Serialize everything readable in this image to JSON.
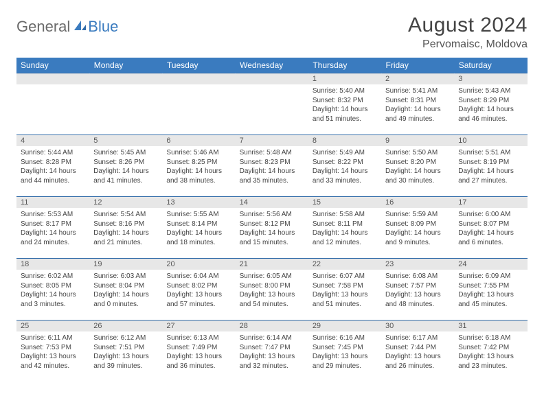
{
  "logo": {
    "word1": "General",
    "word2": "Blue"
  },
  "title": "August 2024",
  "location": "Pervomaisc, Moldova",
  "colors": {
    "header_bg": "#3a7bbf",
    "header_text": "#ffffff",
    "daynum_bg": "#e7e7e7",
    "row_border": "#2f6aa8",
    "body_text": "#444444",
    "logo_gray": "#6a6a6a",
    "logo_blue": "#3a7bbf"
  },
  "day_headers": [
    "Sunday",
    "Monday",
    "Tuesday",
    "Wednesday",
    "Thursday",
    "Friday",
    "Saturday"
  ],
  "weeks": [
    [
      {
        "n": "",
        "sr": "",
        "ss": "",
        "dl": ""
      },
      {
        "n": "",
        "sr": "",
        "ss": "",
        "dl": ""
      },
      {
        "n": "",
        "sr": "",
        "ss": "",
        "dl": ""
      },
      {
        "n": "",
        "sr": "",
        "ss": "",
        "dl": ""
      },
      {
        "n": "1",
        "sr": "Sunrise: 5:40 AM",
        "ss": "Sunset: 8:32 PM",
        "dl": "Daylight: 14 hours and 51 minutes."
      },
      {
        "n": "2",
        "sr": "Sunrise: 5:41 AM",
        "ss": "Sunset: 8:31 PM",
        "dl": "Daylight: 14 hours and 49 minutes."
      },
      {
        "n": "3",
        "sr": "Sunrise: 5:43 AM",
        "ss": "Sunset: 8:29 PM",
        "dl": "Daylight: 14 hours and 46 minutes."
      }
    ],
    [
      {
        "n": "4",
        "sr": "Sunrise: 5:44 AM",
        "ss": "Sunset: 8:28 PM",
        "dl": "Daylight: 14 hours and 44 minutes."
      },
      {
        "n": "5",
        "sr": "Sunrise: 5:45 AM",
        "ss": "Sunset: 8:26 PM",
        "dl": "Daylight: 14 hours and 41 minutes."
      },
      {
        "n": "6",
        "sr": "Sunrise: 5:46 AM",
        "ss": "Sunset: 8:25 PM",
        "dl": "Daylight: 14 hours and 38 minutes."
      },
      {
        "n": "7",
        "sr": "Sunrise: 5:48 AM",
        "ss": "Sunset: 8:23 PM",
        "dl": "Daylight: 14 hours and 35 minutes."
      },
      {
        "n": "8",
        "sr": "Sunrise: 5:49 AM",
        "ss": "Sunset: 8:22 PM",
        "dl": "Daylight: 14 hours and 33 minutes."
      },
      {
        "n": "9",
        "sr": "Sunrise: 5:50 AM",
        "ss": "Sunset: 8:20 PM",
        "dl": "Daylight: 14 hours and 30 minutes."
      },
      {
        "n": "10",
        "sr": "Sunrise: 5:51 AM",
        "ss": "Sunset: 8:19 PM",
        "dl": "Daylight: 14 hours and 27 minutes."
      }
    ],
    [
      {
        "n": "11",
        "sr": "Sunrise: 5:53 AM",
        "ss": "Sunset: 8:17 PM",
        "dl": "Daylight: 14 hours and 24 minutes."
      },
      {
        "n": "12",
        "sr": "Sunrise: 5:54 AM",
        "ss": "Sunset: 8:16 PM",
        "dl": "Daylight: 14 hours and 21 minutes."
      },
      {
        "n": "13",
        "sr": "Sunrise: 5:55 AM",
        "ss": "Sunset: 8:14 PM",
        "dl": "Daylight: 14 hours and 18 minutes."
      },
      {
        "n": "14",
        "sr": "Sunrise: 5:56 AM",
        "ss": "Sunset: 8:12 PM",
        "dl": "Daylight: 14 hours and 15 minutes."
      },
      {
        "n": "15",
        "sr": "Sunrise: 5:58 AM",
        "ss": "Sunset: 8:11 PM",
        "dl": "Daylight: 14 hours and 12 minutes."
      },
      {
        "n": "16",
        "sr": "Sunrise: 5:59 AM",
        "ss": "Sunset: 8:09 PM",
        "dl": "Daylight: 14 hours and 9 minutes."
      },
      {
        "n": "17",
        "sr": "Sunrise: 6:00 AM",
        "ss": "Sunset: 8:07 PM",
        "dl": "Daylight: 14 hours and 6 minutes."
      }
    ],
    [
      {
        "n": "18",
        "sr": "Sunrise: 6:02 AM",
        "ss": "Sunset: 8:05 PM",
        "dl": "Daylight: 14 hours and 3 minutes."
      },
      {
        "n": "19",
        "sr": "Sunrise: 6:03 AM",
        "ss": "Sunset: 8:04 PM",
        "dl": "Daylight: 14 hours and 0 minutes."
      },
      {
        "n": "20",
        "sr": "Sunrise: 6:04 AM",
        "ss": "Sunset: 8:02 PM",
        "dl": "Daylight: 13 hours and 57 minutes."
      },
      {
        "n": "21",
        "sr": "Sunrise: 6:05 AM",
        "ss": "Sunset: 8:00 PM",
        "dl": "Daylight: 13 hours and 54 minutes."
      },
      {
        "n": "22",
        "sr": "Sunrise: 6:07 AM",
        "ss": "Sunset: 7:58 PM",
        "dl": "Daylight: 13 hours and 51 minutes."
      },
      {
        "n": "23",
        "sr": "Sunrise: 6:08 AM",
        "ss": "Sunset: 7:57 PM",
        "dl": "Daylight: 13 hours and 48 minutes."
      },
      {
        "n": "24",
        "sr": "Sunrise: 6:09 AM",
        "ss": "Sunset: 7:55 PM",
        "dl": "Daylight: 13 hours and 45 minutes."
      }
    ],
    [
      {
        "n": "25",
        "sr": "Sunrise: 6:11 AM",
        "ss": "Sunset: 7:53 PM",
        "dl": "Daylight: 13 hours and 42 minutes."
      },
      {
        "n": "26",
        "sr": "Sunrise: 6:12 AM",
        "ss": "Sunset: 7:51 PM",
        "dl": "Daylight: 13 hours and 39 minutes."
      },
      {
        "n": "27",
        "sr": "Sunrise: 6:13 AM",
        "ss": "Sunset: 7:49 PM",
        "dl": "Daylight: 13 hours and 36 minutes."
      },
      {
        "n": "28",
        "sr": "Sunrise: 6:14 AM",
        "ss": "Sunset: 7:47 PM",
        "dl": "Daylight: 13 hours and 32 minutes."
      },
      {
        "n": "29",
        "sr": "Sunrise: 6:16 AM",
        "ss": "Sunset: 7:45 PM",
        "dl": "Daylight: 13 hours and 29 minutes."
      },
      {
        "n": "30",
        "sr": "Sunrise: 6:17 AM",
        "ss": "Sunset: 7:44 PM",
        "dl": "Daylight: 13 hours and 26 minutes."
      },
      {
        "n": "31",
        "sr": "Sunrise: 6:18 AM",
        "ss": "Sunset: 7:42 PM",
        "dl": "Daylight: 13 hours and 23 minutes."
      }
    ]
  ]
}
